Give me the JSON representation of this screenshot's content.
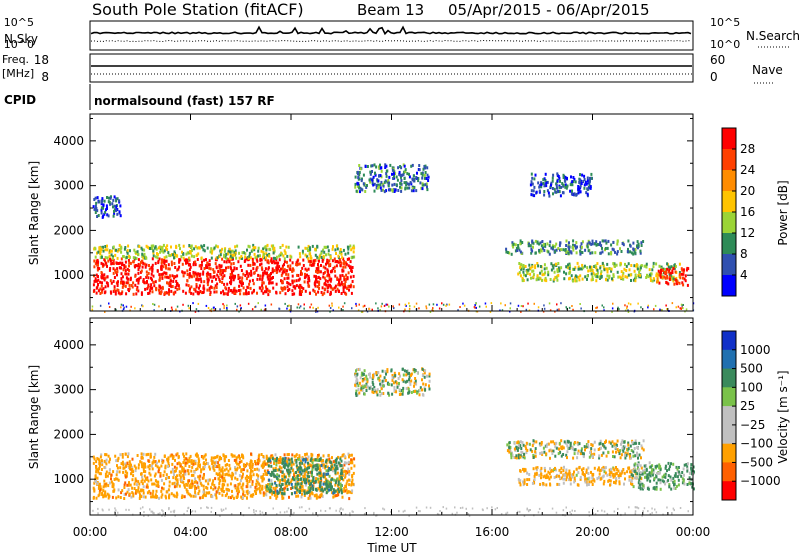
{
  "header": {
    "station": "South Pole Station (fitACF)",
    "beam": "Beam 13",
    "dates": "05/Apr/2015 - 06/Apr/2015"
  },
  "noise_panel": {
    "left_label": "N.Sky",
    "right_label": "N.Search",
    "left_ticks": [
      "10^5",
      "10^0"
    ],
    "right_ticks": [
      "10^5",
      "10^0"
    ]
  },
  "freq_panel": {
    "left_label_1": "Freq.",
    "left_label_2": "[MHz]",
    "right_label": "Nave",
    "left_ticks": [
      "18",
      "8"
    ],
    "right_ticks": [
      "60",
      "0"
    ]
  },
  "cpid_panel": {
    "left_label": "CPID",
    "text": "normalsound (fast) 157 RF"
  },
  "xaxis": {
    "title": "Time UT",
    "ticks": [
      "00:00",
      "04:00",
      "08:00",
      "12:00",
      "16:00",
      "20:00",
      "00:00"
    ]
  },
  "power_panel": {
    "ylabel": "Slant Range [km]",
    "colorbar_label": "Power [dB]",
    "colorbar_ticks": [
      "28",
      "24",
      "20",
      "16",
      "12",
      "8",
      "4"
    ],
    "colors": [
      "#ff0000",
      "#ff4000",
      "#ff8c00",
      "#ffc400",
      "#9bd436",
      "#2e8b57",
      "#3050b0",
      "#0000ff"
    ]
  },
  "velocity_panel": {
    "ylabel": "Slant Range [km]",
    "colorbar_label": "Velocity [m s⁻¹]",
    "colorbar_ticks": [
      "1000",
      "500",
      "100",
      "25",
      "−25",
      "−100",
      "−500",
      "−1000"
    ],
    "colors": [
      "#1030c8",
      "#2070b0",
      "#3a8a5c",
      "#7ac24a",
      "#c0c0c0",
      "#c0c0c0",
      "#ffa000",
      "#ff6000",
      "#ff0000"
    ]
  },
  "chart_data": [
    {
      "type": "heatmap",
      "title": "Power",
      "x_range_hours": [
        0,
        24
      ],
      "ylim": [
        200,
        4600
      ],
      "yticks": [
        1000,
        2000,
        3000,
        4000
      ],
      "ylabel": "Slant Range [km]",
      "xlabel": "Time UT",
      "colorbar": {
        "label": "Power [dB]",
        "ticks": [
          4,
          8,
          12,
          16,
          20,
          24,
          28
        ]
      },
      "regions": [
        {
          "t": [
            0.1,
            10.5
          ],
          "r": [
            600,
            1400
          ],
          "level": 0.93
        },
        {
          "t": [
            0.1,
            10.5
          ],
          "r": [
            1400,
            1700
          ],
          "level": 0.45
        },
        {
          "t": [
            0.1,
            1.2
          ],
          "r": [
            2300,
            2800
          ],
          "level": 0.2
        },
        {
          "t": [
            10.5,
            13.5
          ],
          "r": [
            2900,
            3500
          ],
          "level": 0.25
        },
        {
          "t": [
            16.5,
            22.0
          ],
          "r": [
            1500,
            1800
          ],
          "level": 0.3
        },
        {
          "t": [
            17.0,
            23.5
          ],
          "r": [
            900,
            1300
          ],
          "level": 0.45
        },
        {
          "t": [
            22.5,
            23.8
          ],
          "r": [
            800,
            1200
          ],
          "level": 0.9
        },
        {
          "t": [
            17.5,
            20.0
          ],
          "r": [
            2800,
            3300
          ],
          "level": 0.2
        }
      ]
    },
    {
      "type": "heatmap",
      "title": "Velocity",
      "x_range_hours": [
        0,
        24
      ],
      "ylim": [
        200,
        4600
      ],
      "yticks": [
        1000,
        2000,
        3000,
        4000
      ],
      "ylabel": "Slant Range [km]",
      "xlabel": "Time UT",
      "colorbar": {
        "label": "Velocity [m s-1]",
        "ticks": [
          -1000,
          -500,
          -100,
          -25,
          25,
          100,
          500,
          1000
        ]
      },
      "regions": [
        {
          "t": [
            0.1,
            10.5
          ],
          "r": [
            600,
            1600
          ],
          "velocity": -300
        },
        {
          "t": [
            7.0,
            10.0
          ],
          "r": [
            700,
            1500
          ],
          "velocity": 300
        },
        {
          "t": [
            10.5,
            13.5
          ],
          "r": [
            2900,
            3500
          ],
          "velocity": 0
        },
        {
          "t": [
            16.5,
            22.0
          ],
          "r": [
            1500,
            1900
          ],
          "velocity": 0
        },
        {
          "t": [
            17.0,
            22.0
          ],
          "r": [
            900,
            1300
          ],
          "velocity": -200
        },
        {
          "t": [
            21.5,
            24.0
          ],
          "r": [
            800,
            1400
          ],
          "velocity": 150
        }
      ]
    }
  ]
}
